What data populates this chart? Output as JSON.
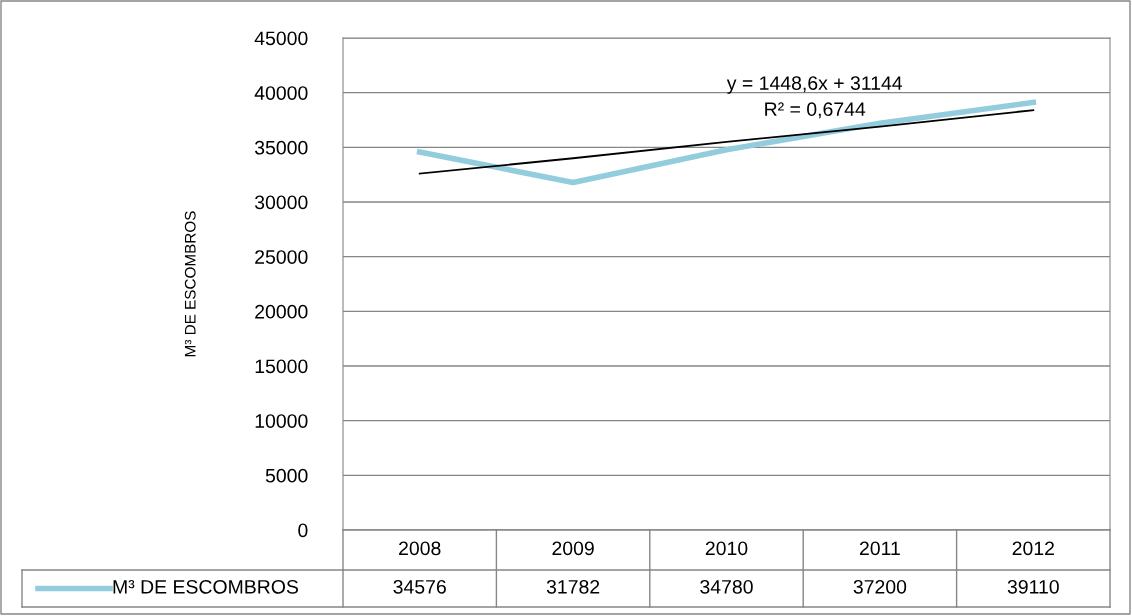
{
  "chart_data": {
    "type": "line",
    "ylabel": "M³ DE ESCOMBROS",
    "categories": [
      "2008",
      "2009",
      "2010",
      "2011",
      "2012"
    ],
    "series": [
      {
        "name": "M³ DE ESCOMBROS",
        "color": "#93cddd",
        "values": [
          34576,
          31782,
          34780,
          37200,
          39110
        ],
        "value_labels": [
          "34576",
          "31782",
          "34780",
          "37200",
          "39110"
        ]
      },
      {
        "type": "line",
        "color": "#000000",
        "values": [
          32600,
          34000,
          35500,
          36900,
          38400
        ]
      }
    ],
    "ylim": [
      0,
      45000
    ],
    "yticks": [
      0,
      5000,
      10000,
      15000,
      20000,
      25000,
      30000,
      35000,
      40000,
      45000
    ],
    "grid": "y",
    "legend": "bottom left",
    "annotations": [
      "y = 1448,6x + 31144",
      "R² = 0,6744"
    ]
  }
}
